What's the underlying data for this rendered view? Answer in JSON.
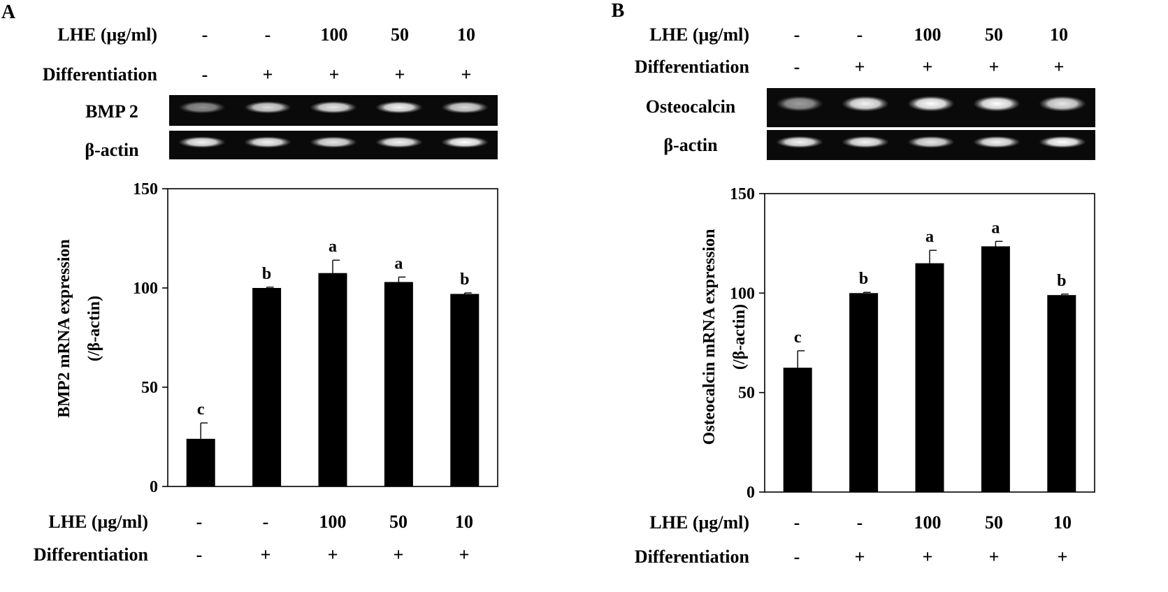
{
  "chart_data": [
    {
      "type": "bar",
      "panel_label": "A",
      "gel_labels": [
        "BMP 2",
        "β-actin"
      ],
      "row_labels": {
        "lhe": "LHE (μg/ml)",
        "differentiation": "Differentiation"
      },
      "lhe_values": [
        "-",
        "-",
        "100",
        "50",
        "10"
      ],
      "differentiation_values": [
        "-",
        "+",
        "+",
        "+",
        "+"
      ],
      "values": [
        24,
        100,
        107.5,
        103,
        97
      ],
      "errors": [
        8,
        0.4,
        6.5,
        2.5,
        0.5
      ],
      "significance": [
        "c",
        "b",
        "a",
        "a",
        "b"
      ],
      "ylabel": "BMP2 mRNA expression (/β-actin)",
      "ylabel_lines": [
        "BMP2 mRNA expression",
        "(/β-actin)"
      ],
      "ylim": [
        0,
        150
      ],
      "yticks": [
        0,
        50,
        100,
        150
      ],
      "gel_band_intensity": {
        "target": [
          0.55,
          0.85,
          0.9,
          0.95,
          0.85
        ],
        "actin": [
          0.95,
          0.95,
          0.9,
          0.95,
          1.0
        ]
      },
      "bar_color": "#000000"
    },
    {
      "type": "bar",
      "panel_label": "B",
      "gel_labels": [
        "Osteocalcin",
        "β-actin"
      ],
      "row_labels": {
        "lhe": "LHE (μg/ml)",
        "differentiation": "Differentiation"
      },
      "lhe_values": [
        "-",
        "-",
        "100",
        "50",
        "10"
      ],
      "differentiation_values": [
        "-",
        "+",
        "+",
        "+",
        "+"
      ],
      "values": [
        62.5,
        100,
        115,
        123.5,
        99
      ],
      "errors": [
        8.5,
        0.4,
        6.5,
        2.5,
        0.5
      ],
      "significance": [
        "c",
        "b",
        "a",
        "a",
        "b"
      ],
      "ylabel": "Osteocalcin mRNA expression (/β-actin)",
      "ylabel_lines": [
        "Osteocalcin mRNA expression",
        "(/β-actin)"
      ],
      "ylim": [
        0,
        150
      ],
      "yticks": [
        0,
        50,
        100,
        150
      ],
      "gel_band_intensity": {
        "target": [
          0.6,
          0.95,
          1.0,
          1.0,
          0.9
        ],
        "actin": [
          0.95,
          0.95,
          0.9,
          0.95,
          1.0
        ]
      },
      "bar_color": "#000000"
    }
  ]
}
